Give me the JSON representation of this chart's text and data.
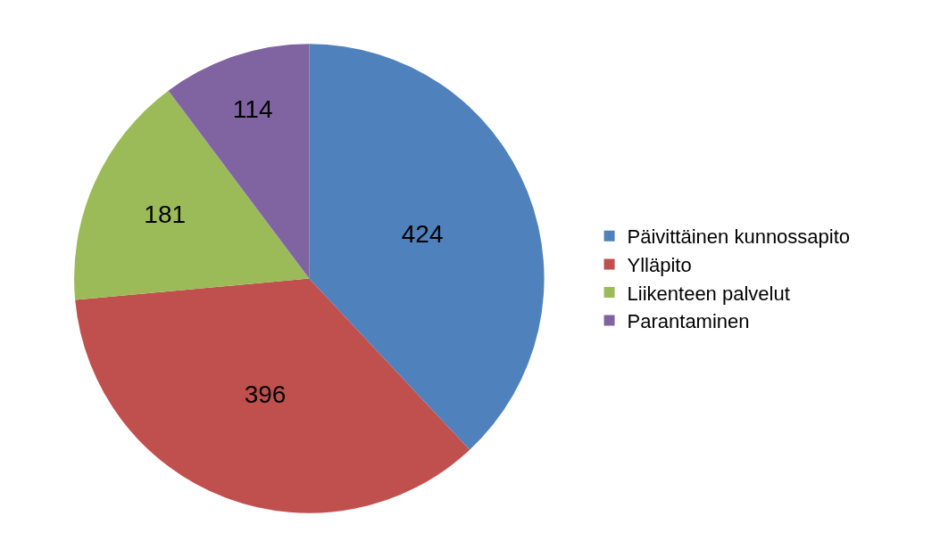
{
  "chart_data": {
    "type": "pie",
    "categories": [
      "Päivittäinen kunnossapito",
      "Ylläpito",
      "Liikenteen palvelut",
      "Parantaminen"
    ],
    "values": [
      424,
      396,
      181,
      114
    ],
    "colors": [
      "#4f81bd",
      "#c0504d",
      "#9bbb59",
      "#8064a2"
    ],
    "data_labels": true,
    "legend": "right"
  }
}
